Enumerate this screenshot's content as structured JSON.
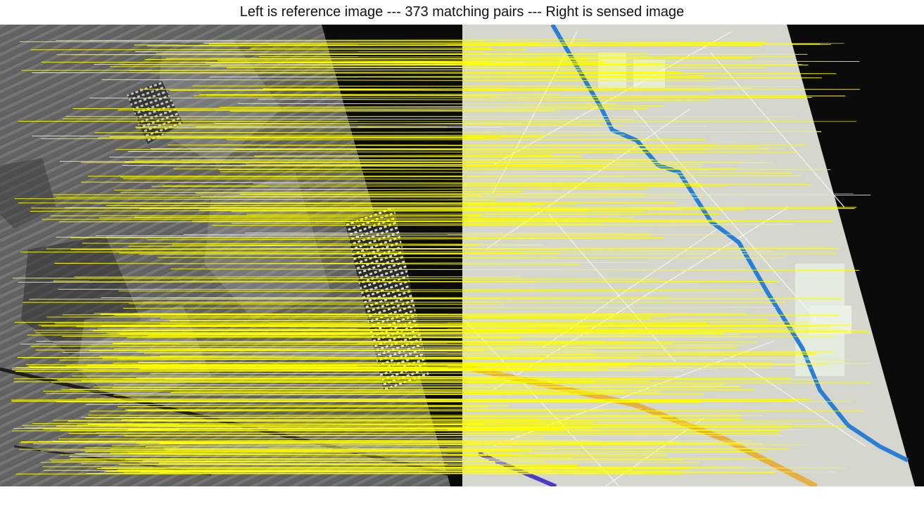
{
  "title": "Left is reference image --- 373 matching pairs --- Right is sensed image",
  "match_count": 373,
  "colors": {
    "match_line": "#ffff00",
    "map_background": "#d5d7cf",
    "river": "#2a7fd4",
    "road_orange": "#e8a82a",
    "road_purple": "#4b3cc8",
    "nodata": "#0b0b0b"
  },
  "panels": {
    "left": "reference-satellite-image",
    "right": "sensed-map-image"
  }
}
